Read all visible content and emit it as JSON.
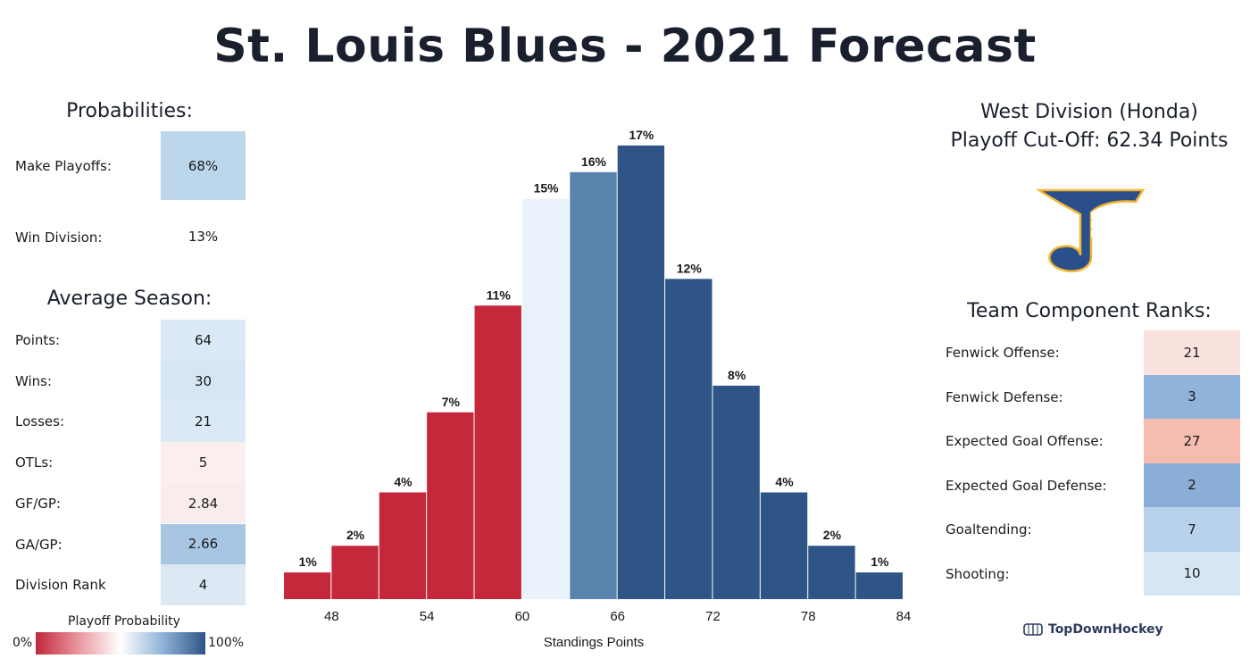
{
  "title": "St. Louis Blues - 2021 Forecast",
  "probabilities": {
    "heading": "Probabilities:",
    "rows": [
      {
        "label": "Make Playoffs:",
        "value": "68%",
        "color": "#bcd6ec"
      },
      {
        "label": "Win Division:",
        "value": "13%",
        "color": "#ffffff"
      }
    ]
  },
  "average_season": {
    "heading": "Average Season:",
    "rows": [
      {
        "label": "Points:",
        "value": "64",
        "color": "#dbe9f6"
      },
      {
        "label": "Wins:",
        "value": "30",
        "color": "#d6e6f4"
      },
      {
        "label": "Losses:",
        "value": "21",
        "color": "#dbe9f6"
      },
      {
        "label": "OTLs:",
        "value": "5",
        "color": "#fbeeee"
      },
      {
        "label": "GF/GP:",
        "value": "2.84",
        "color": "#f8ecec"
      },
      {
        "label": "GA/GP:",
        "value": "2.66",
        "color": "#a8c6e4"
      },
      {
        "label": "Division Rank",
        "value": "4",
        "color": "#dce9f5"
      }
    ]
  },
  "legend": {
    "title": "Playoff Probability",
    "min_label": "0%",
    "max_label": "100%",
    "colors": [
      "#c0283b",
      "#e9969e",
      "#ffffff",
      "#8fb3d6",
      "#2e5585"
    ]
  },
  "division": {
    "line1": "West Division (Honda)",
    "line2": "Playoff Cut-Off: 62.34 Points"
  },
  "logo": {
    "icon": "blues-note-logo",
    "primary": "#2a4f8c",
    "gold": "#f2b731"
  },
  "component_ranks": {
    "heading": "Team Component Ranks:",
    "rows": [
      {
        "label": "Fenwick Offense:",
        "value": "21",
        "color": "#fae2df"
      },
      {
        "label": "Fenwick Defense:",
        "value": "3",
        "color": "#8fb3d9"
      },
      {
        "label": "Expected Goal Offense:",
        "value": "27",
        "color": "#f4bdb0"
      },
      {
        "label": "Expected Goal Defense:",
        "value": "2",
        "color": "#8aaed5"
      },
      {
        "label": "Goaltending:",
        "value": "7",
        "color": "#b7d2ea"
      },
      {
        "label": "Shooting:",
        "value": "10",
        "color": "#d6e6f5"
      }
    ]
  },
  "brand": "TopDownHockey",
  "chart_data": {
    "type": "bar",
    "xlabel": "Standings Points",
    "ylabel": "",
    "x_ticks": [
      48,
      54,
      60,
      66,
      72,
      78,
      84
    ],
    "xlim": [
      45,
      84
    ],
    "ylim": [
      0,
      17.5
    ],
    "bins": [
      {
        "x": 46.5,
        "value": 1,
        "label": "1%",
        "color": "#c5283b"
      },
      {
        "x": 49.5,
        "value": 2,
        "label": "2%",
        "color": "#c5283b"
      },
      {
        "x": 52.5,
        "value": 4,
        "label": "4%",
        "color": "#c5283b"
      },
      {
        "x": 55.5,
        "value": 7,
        "label": "7%",
        "color": "#c5283b"
      },
      {
        "x": 58.5,
        "value": 11,
        "label": "11%",
        "color": "#c5283b"
      },
      {
        "x": 61.5,
        "value": 15,
        "label": "15%",
        "color": "#e9f2fa"
      },
      {
        "x": 64.5,
        "value": 16,
        "label": "16%",
        "color": "#5783ad"
      },
      {
        "x": 67.5,
        "value": 17,
        "label": "17%",
        "color": "#2e5585"
      },
      {
        "x": 70.5,
        "value": 12,
        "label": "12%",
        "color": "#2e5585"
      },
      {
        "x": 73.5,
        "value": 8,
        "label": "8%",
        "color": "#2e5585"
      },
      {
        "x": 76.5,
        "value": 4,
        "label": "4%",
        "color": "#2e5585"
      },
      {
        "x": 79.5,
        "value": 2,
        "label": "2%",
        "color": "#2e5585"
      },
      {
        "x": 82.5,
        "value": 1,
        "label": "1%",
        "color": "#2e5585"
      }
    ]
  }
}
